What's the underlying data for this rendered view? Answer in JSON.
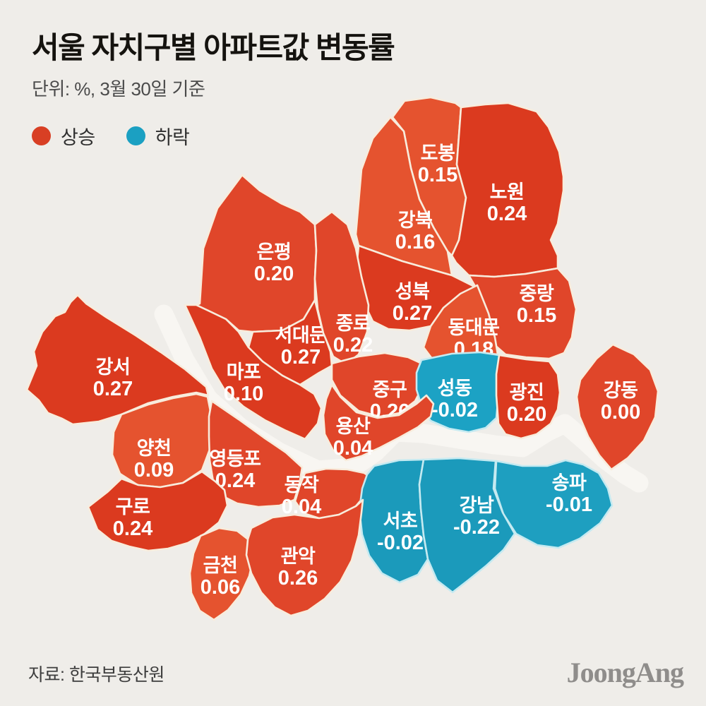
{
  "header": {
    "title": "서울 자치구별 아파트값 변동률",
    "subtitle": "단위: %, 3월 30일 기준"
  },
  "legend": {
    "up_label": "상승",
    "down_label": "하락",
    "up_color": "#d83f24",
    "down_color": "#1ba0c2"
  },
  "map": {
    "unit": "%",
    "as_of": "3월 30일",
    "districts": [
      {
        "id": "dobong",
        "name": "도봉",
        "value": "0.15",
        "trend": "up",
        "color": "#e5532f"
      },
      {
        "id": "nowon",
        "name": "노원",
        "value": "0.24",
        "trend": "up",
        "color": "#db3a1f"
      },
      {
        "id": "gangbuk",
        "name": "강북",
        "value": "0.16",
        "trend": "up",
        "color": "#e5532f"
      },
      {
        "id": "eunpyeong",
        "name": "은평",
        "value": "0.20",
        "trend": "up",
        "color": "#e0462a"
      },
      {
        "id": "seongbuk",
        "name": "성북",
        "value": "0.27",
        "trend": "up",
        "color": "#db3a1f"
      },
      {
        "id": "jungnang",
        "name": "중랑",
        "value": "0.15",
        "trend": "up",
        "color": "#e0462a"
      },
      {
        "id": "seodaemun",
        "name": "서대문",
        "value": "0.27",
        "trend": "up",
        "color": "#db3a1f"
      },
      {
        "id": "jongno",
        "name": "종로",
        "value": "0.22",
        "trend": "up",
        "color": "#e0462a"
      },
      {
        "id": "dongdaemun",
        "name": "동대문",
        "value": "0.18",
        "trend": "up",
        "color": "#e5532f"
      },
      {
        "id": "mapo",
        "name": "마포",
        "value": "0.10",
        "trend": "up",
        "color": "#db3a1f"
      },
      {
        "id": "junggu",
        "name": "중구",
        "value": "0.26",
        "trend": "up",
        "color": "#e0462a"
      },
      {
        "id": "seongdong",
        "name": "성동",
        "value": "-0.02",
        "trend": "down",
        "color": "#1ca2c4"
      },
      {
        "id": "gwangjin",
        "name": "광진",
        "value": "0.20",
        "trend": "up",
        "color": "#db3a1f"
      },
      {
        "id": "gangdong",
        "name": "강동",
        "value": "0.00",
        "trend": "up",
        "color": "#e0462a"
      },
      {
        "id": "gangseo",
        "name": "강서",
        "value": "0.27",
        "trend": "up",
        "color": "#db3a1f"
      },
      {
        "id": "yongsan",
        "name": "용산",
        "value": "0.04",
        "trend": "up",
        "color": "#e0462a"
      },
      {
        "id": "yangcheon",
        "name": "양천",
        "value": "0.09",
        "trend": "up",
        "color": "#e5532f"
      },
      {
        "id": "yeongdeungpo",
        "name": "영등포",
        "value": "0.24",
        "trend": "up",
        "color": "#e0462a"
      },
      {
        "id": "dongjak",
        "name": "동작",
        "value": "0.04",
        "trend": "up",
        "color": "#e0462a"
      },
      {
        "id": "songpa",
        "name": "송파",
        "value": "-0.01",
        "trend": "down",
        "color": "#1e9fc0"
      },
      {
        "id": "guro",
        "name": "구로",
        "value": "0.24",
        "trend": "up",
        "color": "#db3a1f"
      },
      {
        "id": "seocho",
        "name": "서초",
        "value": "-0.02",
        "trend": "down",
        "color": "#1b9abb"
      },
      {
        "id": "gangnam",
        "name": "강남",
        "value": "-0.22",
        "trend": "down",
        "color": "#1b9abb"
      },
      {
        "id": "geumcheon",
        "name": "금천",
        "value": "0.06",
        "trend": "up",
        "color": "#e5532f"
      },
      {
        "id": "gwanak",
        "name": "관악",
        "value": "0.26",
        "trend": "up",
        "color": "#e0462a"
      }
    ]
  },
  "footer": {
    "source": "자료: 한국부동산원",
    "logo": "JoongAng"
  }
}
